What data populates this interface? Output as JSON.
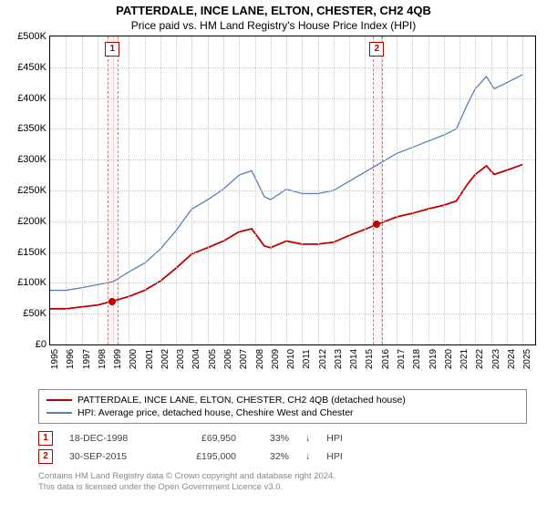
{
  "title": "PATTERDALE, INCE LANE, ELTON, CHESTER, CH2 4QB",
  "subtitle": "Price paid vs. HM Land Registry's House Price Index (HPI)",
  "chart": {
    "type": "line",
    "x_years": [
      1995,
      1996,
      1997,
      1998,
      1999,
      2000,
      2001,
      2002,
      2003,
      2004,
      2005,
      2006,
      2007,
      2008,
      2009,
      2010,
      2011,
      2012,
      2013,
      2014,
      2015,
      2016,
      2017,
      2018,
      2019,
      2020,
      2021,
      2022,
      2023,
      2024,
      2025
    ],
    "xlim": [
      1995,
      2025.8
    ],
    "ylim": [
      0,
      500000
    ],
    "ytick_step": 50000,
    "ytick_prefix": "£",
    "ytick_suffix": "K",
    "grid_color": "#c8c8c8",
    "background_color": "#ffffff",
    "series": [
      {
        "name": "hpi",
        "color": "#5b7fb4",
        "width": 1.3,
        "points": [
          [
            1995,
            88000
          ],
          [
            1996,
            88000
          ],
          [
            1997,
            92000
          ],
          [
            1998,
            97000
          ],
          [
            1999,
            102000
          ],
          [
            2000,
            118000
          ],
          [
            2001,
            132000
          ],
          [
            2002,
            155000
          ],
          [
            2003,
            185000
          ],
          [
            2004,
            220000
          ],
          [
            2005,
            235000
          ],
          [
            2006,
            252000
          ],
          [
            2007,
            275000
          ],
          [
            2007.8,
            282000
          ],
          [
            2008.6,
            240000
          ],
          [
            2009,
            235000
          ],
          [
            2010,
            252000
          ],
          [
            2011,
            245000
          ],
          [
            2012,
            245000
          ],
          [
            2013,
            250000
          ],
          [
            2014,
            265000
          ],
          [
            2015,
            280000
          ],
          [
            2016,
            295000
          ],
          [
            2017,
            310000
          ],
          [
            2018,
            320000
          ],
          [
            2019,
            330000
          ],
          [
            2020,
            340000
          ],
          [
            2020.8,
            350000
          ],
          [
            2021.5,
            390000
          ],
          [
            2022,
            415000
          ],
          [
            2022.7,
            435000
          ],
          [
            2023.2,
            415000
          ],
          [
            2024,
            425000
          ],
          [
            2025,
            438000
          ]
        ]
      },
      {
        "name": "property",
        "color": "#c00000",
        "width": 1.8,
        "points": [
          [
            1995,
            58000
          ],
          [
            1996,
            58000
          ],
          [
            1997,
            61000
          ],
          [
            1998,
            64000
          ],
          [
            1998.95,
            69950
          ],
          [
            2000,
            78000
          ],
          [
            2001,
            88000
          ],
          [
            2002,
            103000
          ],
          [
            2003,
            124000
          ],
          [
            2004,
            147000
          ],
          [
            2005,
            157000
          ],
          [
            2006,
            168000
          ],
          [
            2007,
            183000
          ],
          [
            2007.8,
            188000
          ],
          [
            2008.6,
            160000
          ],
          [
            2009,
            157000
          ],
          [
            2010,
            168000
          ],
          [
            2011,
            163000
          ],
          [
            2012,
            163000
          ],
          [
            2013,
            166000
          ],
          [
            2014,
            177000
          ],
          [
            2015,
            187000
          ],
          [
            2015.75,
            195000
          ],
          [
            2016,
            197000
          ],
          [
            2017,
            207000
          ],
          [
            2018,
            213000
          ],
          [
            2019,
            220000
          ],
          [
            2020,
            226000
          ],
          [
            2020.8,
            233000
          ],
          [
            2021.5,
            260000
          ],
          [
            2022,
            276000
          ],
          [
            2022.7,
            290000
          ],
          [
            2023.2,
            276000
          ],
          [
            2024,
            283000
          ],
          [
            2025,
            292000
          ]
        ]
      }
    ],
    "sale_markers": [
      {
        "n": "1",
        "x": 1998.95,
        "y": 69950
      },
      {
        "n": "2",
        "x": 2015.75,
        "y": 195000
      }
    ]
  },
  "legend": [
    {
      "color": "#c00000",
      "label": "PATTERDALE, INCE LANE, ELTON, CHESTER, CH2 4QB (detached house)"
    },
    {
      "color": "#5b7fb4",
      "label": "HPI: Average price, detached house, Cheshire West and Chester"
    }
  ],
  "sales": [
    {
      "n": "1",
      "date": "18-DEC-1998",
      "price": "£69,950",
      "delta": "33%",
      "arrow": "↓",
      "ref": "HPI"
    },
    {
      "n": "2",
      "date": "30-SEP-2015",
      "price": "£195,000",
      "delta": "32%",
      "arrow": "↓",
      "ref": "HPI"
    }
  ],
  "attribution": [
    "Contains HM Land Registry data © Crown copyright and database right 2024.",
    "This data is licensed under the Open Government Licence v3.0."
  ]
}
